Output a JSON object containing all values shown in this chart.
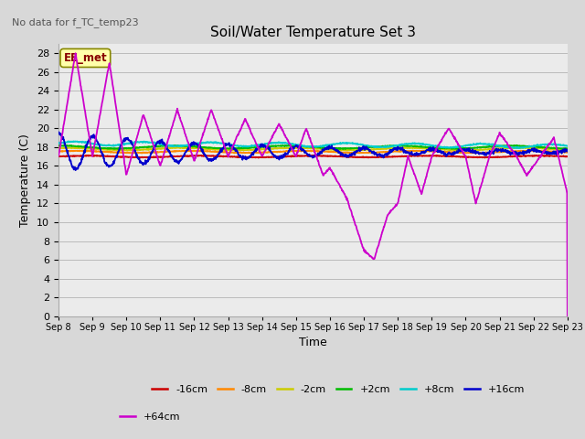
{
  "title": "Soil/Water Temperature Set 3",
  "subtitle": "No data for f_TC_temp23",
  "xlabel": "Time",
  "ylabel": "Temperature (C)",
  "ylim": [
    0,
    29
  ],
  "yticks": [
    0,
    2,
    4,
    6,
    8,
    10,
    12,
    14,
    16,
    18,
    20,
    22,
    24,
    26,
    28
  ],
  "xtick_labels": [
    "Sep 8",
    "Sep 9",
    "Sep 10",
    "Sep 11",
    "Sep 12",
    "Sep 13",
    "Sep 14",
    "Sep 15",
    "Sep 16",
    "Sep 17",
    "Sep 18",
    "Sep 19",
    "Sep 20",
    "Sep 21",
    "Sep 22",
    "Sep 23"
  ],
  "annotation_text": "EE_met",
  "bg_color": "#d8d8d8",
  "plot_bg_color": "#ebebeb",
  "series_colors": {
    "-16cm": "#cc0000",
    "-8cm": "#ff8800",
    "-2cm": "#cccc00",
    "+2cm": "#00bb00",
    "+8cm": "#00cccc",
    "+16cm": "#0000cc",
    "+64cm": "#cc00cc"
  },
  "legend_entries": [
    "-16cm",
    "-8cm",
    "-2cm",
    "+2cm",
    "+8cm",
    "+16cm",
    "+64cm"
  ]
}
